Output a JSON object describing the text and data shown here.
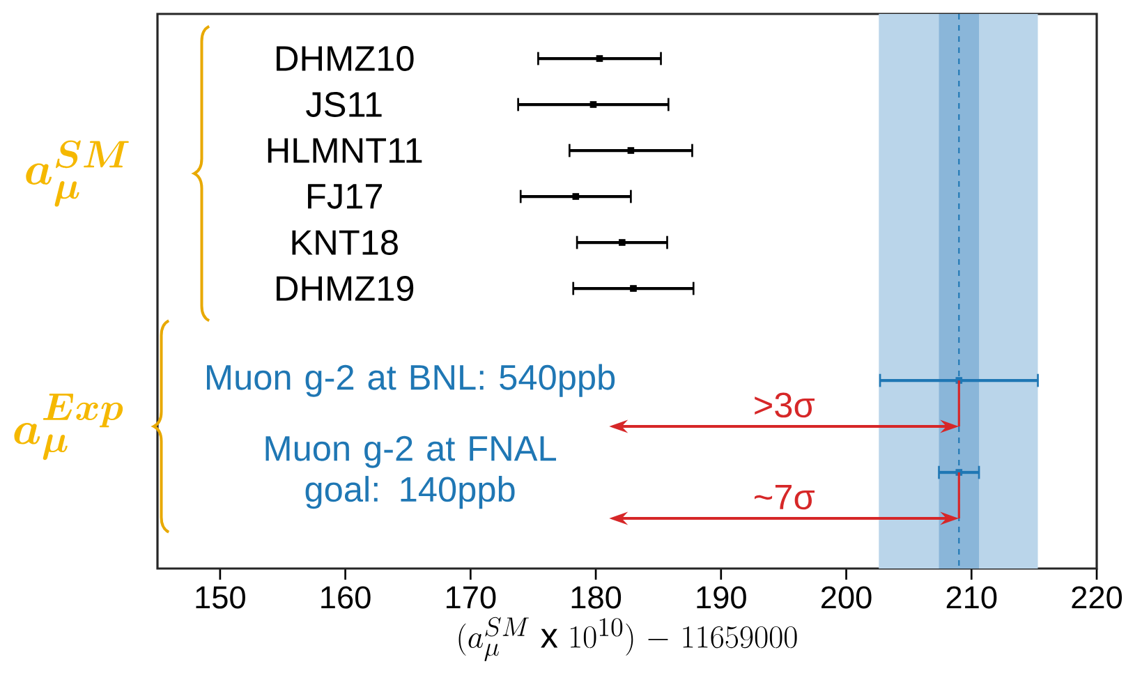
{
  "chart_data": {
    "type": "scatter",
    "orientation": "horizontal",
    "marker": "square",
    "xlabel": "(a_{\\mu}^{SM}\\ \\mathrm{x}\\ 10^{10})\\ \\mathrm{-}\\ 11659000",
    "categories": [
      "DHMZ10",
      "JS11",
      "HLMNT11",
      "FJ17",
      "KNT18",
      "DHMZ19",
      null,
      "Muon g-2 at BNL: 540ppb",
      null,
      "Muon g-2 at FNAL goal: 140ppb",
      null
    ],
    "series": [
      {
        "color": "#000000",
        "values": [
          180.3,
          179.8,
          182.8,
          178.4,
          182.1,
          183.0,
          null,
          null,
          null,
          null,
          null
        ],
        "errors": [
          4.9,
          6.0,
          4.9,
          4.4,
          3.6,
          4.8,
          null,
          null,
          null,
          null,
          null
        ]
      },
      {
        "color": "#1f77b4",
        "values": [
          null,
          null,
          null,
          null,
          null,
          null,
          null,
          209.0,
          null,
          209.0,
          null
        ],
        "errors": [
          null,
          null,
          null,
          null,
          null,
          null,
          null,
          6.3,
          null,
          1.6,
          null
        ]
      }
    ],
    "xlim": [
      145,
      220
    ],
    "xticks": [
      150,
      160,
      170,
      180,
      190,
      200,
      210,
      220
    ],
    "bands": [
      {
        "axis": "x",
        "from": 202.6,
        "to": 215.3,
        "color": "#bad5ea"
      },
      {
        "axis": "x",
        "from": 207.4,
        "to": 210.6,
        "color": "#8ab6d9"
      }
    ],
    "ref_lines": [
      {
        "axis": "x",
        "value": 209.0,
        "color": "#1f77b4",
        "line_style": "dashed"
      }
    ],
    "annotations": [
      "a_{\\mu}^{SM}",
      "a_{\\mu}^{Exp}",
      ">3σ",
      "~7σ"
    ]
  }
}
